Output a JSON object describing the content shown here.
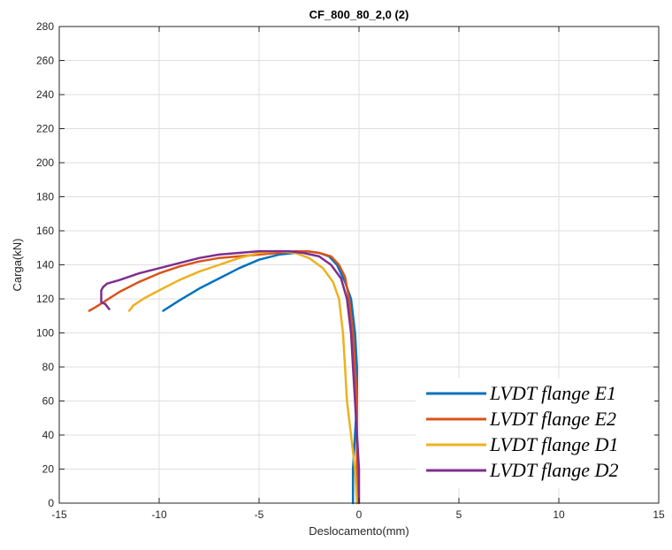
{
  "chart_data": {
    "type": "line",
    "title": "CF_800_80_2,0 (2)",
    "xlabel": "Deslocamento(mm)",
    "ylabel": "Carga(kN)",
    "xlim": [
      -15,
      15
    ],
    "ylim": [
      0,
      280
    ],
    "xticks": [
      -15,
      -10,
      -5,
      0,
      5,
      10,
      15
    ],
    "yticks": [
      0,
      20,
      40,
      60,
      80,
      100,
      120,
      140,
      160,
      180,
      200,
      220,
      240,
      260,
      280
    ],
    "grid": true,
    "legend_position": "bottom-right",
    "series": [
      {
        "name": "LVDT flange E1",
        "color": "#0072BD",
        "x": [
          -0.3,
          -0.3,
          -0.2,
          -0.1,
          -0.1,
          -0.2,
          -0.4,
          -0.7,
          -1.1,
          -1.5,
          -2.0,
          -2.6,
          -3.2,
          -4.0,
          -5.0,
          -6.0,
          -7.0,
          -8.0,
          -9.0,
          -9.4,
          -9.8
        ],
        "y": [
          0,
          20,
          40,
          60,
          80,
          100,
          120,
          130,
          140,
          145,
          147,
          148,
          147,
          146,
          143,
          138,
          132,
          126,
          119,
          116,
          113
        ]
      },
      {
        "name": "LVDT flange E2",
        "color": "#D95319",
        "x": [
          -0.1,
          -0.1,
          -0.1,
          -0.1,
          -0.2,
          -0.3,
          -0.5,
          -0.7,
          -1.0,
          -1.4,
          -2.0,
          -2.6,
          -3.2,
          -4.0,
          -5.0,
          -6.0,
          -7.0,
          -8.0,
          -9.0,
          -10.0,
          -11.0,
          -12.0,
          -12.8,
          -13.2,
          -13.5
        ],
        "y": [
          0,
          20,
          40,
          60,
          80,
          100,
          120,
          133,
          140,
          145,
          147,
          148,
          148,
          147,
          146,
          145,
          144,
          142,
          139,
          135,
          130,
          124,
          118,
          115,
          113
        ]
      },
      {
        "name": "LVDT flange D1",
        "color": "#EDB120",
        "x": [
          -0.1,
          -0.2,
          -0.4,
          -0.6,
          -0.7,
          -0.8,
          -1.0,
          -1.3,
          -1.8,
          -2.5,
          -3.2,
          -4.0,
          -5.0,
          -6.0,
          -7.0,
          -8.0,
          -9.0,
          -10.0,
          -10.8,
          -11.3,
          -11.5
        ],
        "y": [
          0,
          20,
          40,
          60,
          80,
          100,
          120,
          130,
          138,
          144,
          147,
          148,
          147,
          144,
          140,
          136,
          131,
          125,
          120,
          116,
          113
        ]
      },
      {
        "name": "LVDT flange D2",
        "color": "#7E2F8E",
        "x": [
          0.0,
          0.0,
          -0.1,
          -0.2,
          -0.3,
          -0.4,
          -0.6,
          -0.9,
          -1.4,
          -2.0,
          -2.8,
          -3.5,
          -4.2,
          -5.0,
          -6.0,
          -7.0,
          -8.0,
          -9.0,
          -10.0,
          -11.0,
          -12.0,
          -12.6,
          -12.8,
          -12.9,
          -12.9,
          -12.7,
          -12.5
        ],
        "y": [
          0,
          20,
          40,
          60,
          80,
          100,
          120,
          132,
          140,
          145,
          147,
          148,
          148,
          148,
          147,
          146,
          144,
          141,
          138,
          135,
          131,
          129,
          127,
          125,
          118,
          117,
          114
        ]
      }
    ]
  }
}
